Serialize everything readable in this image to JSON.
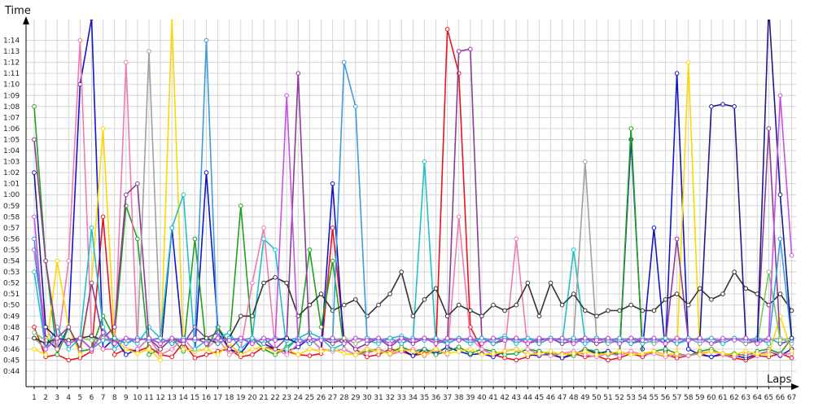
{
  "chart_data": {
    "type": "line",
    "title": "",
    "xlabel": "Laps",
    "ylabel": "Time",
    "grid": true,
    "legend": "none",
    "xlim": [
      1,
      67
    ],
    "ylim": [
      0.7333,
      1.2667
    ],
    "y_unit": "minutes (m:ss)",
    "x_ticks": [
      "1",
      "2",
      "3",
      "4",
      "5",
      "6",
      "7",
      "8",
      "9",
      "10",
      "11",
      "12",
      "13",
      "14",
      "15",
      "16",
      "17",
      "18",
      "19",
      "20",
      "21",
      "22",
      "23",
      "24",
      "25",
      "26",
      "27",
      "28",
      "29",
      "30",
      "31",
      "32",
      "33",
      "34",
      "35",
      "36",
      "37",
      "38",
      "39",
      "40",
      "41",
      "42",
      "43",
      "44",
      "45",
      "46",
      "47",
      "48",
      "49",
      "50",
      "51",
      "52",
      "53",
      "54",
      "55",
      "56",
      "57",
      "58",
      "59",
      "60",
      "61",
      "62",
      "63",
      "64",
      "65",
      "66",
      "67"
    ],
    "y_ticks": [
      "0:44",
      "0:45",
      "0:46",
      "0:47",
      "0:48",
      "0:49",
      "0:50",
      "0:51",
      "0:52",
      "0:53",
      "0:54",
      "0:55",
      "0:56",
      "0:57",
      "0:58",
      "0:59",
      "1:00",
      "1:01",
      "1:02",
      "1:03",
      "1:04",
      "1:05",
      "1:06",
      "1:07",
      "1:08",
      "1:09",
      "1:10",
      "1:11",
      "1:12",
      "1:13",
      "1:14"
    ],
    "series": [
      {
        "color": "#e8141e",
        "values": [
          48,
          45.3,
          45.5,
          45,
          45.2,
          45.8,
          58,
          45.5,
          46,
          45.8,
          46.2,
          45.5,
          45.3,
          46.6,
          45.2,
          45.5,
          45.8,
          46,
          45.3,
          45.5,
          46.2,
          46,
          45.8,
          45.5,
          45.4,
          45.6,
          57,
          47,
          46,
          45.3,
          45.5,
          46,
          45.8,
          45.4,
          45.6,
          46,
          75,
          71,
          48,
          46,
          45.5,
          45.2,
          45,
          45.3,
          45.8,
          45.5,
          45.2,
          45.6,
          45.3,
          45.4,
          45,
          45.2,
          45.6,
          45.3,
          45.8,
          45.5,
          45.2,
          45.4,
          45.6,
          45.3,
          45.5,
          45.2,
          45,
          45.4,
          45.3,
          45.6,
          45.2
        ]
      },
      {
        "color": "#1414c8",
        "values": [
          55,
          47,
          46,
          48,
          70,
          76,
          46,
          47,
          45.5,
          46,
          47,
          45.5,
          57,
          46,
          45.8,
          62,
          48,
          46,
          45.6,
          47,
          46.5,
          46,
          45.8,
          46.2,
          47,
          46,
          61,
          46,
          45.5,
          46,
          45.8,
          45.6,
          46,
          45.4,
          46,
          45.6,
          46.2,
          45.8,
          45.5,
          45.6,
          45.3,
          45.8,
          46,
          45.5,
          45.4,
          45.6,
          45.2,
          45.5,
          46,
          45.6,
          45.8,
          45.5,
          65,
          46,
          57,
          45.8,
          71,
          46,
          45.5,
          45.3,
          45.6,
          45.4,
          45.2,
          45.5,
          45.8,
          45.4,
          46
        ]
      },
      {
        "color": "#22a022",
        "values": [
          68,
          54,
          45.5,
          48,
          45.8,
          46,
          49,
          47,
          59,
          56,
          45.5,
          46,
          47,
          45.8,
          56,
          46,
          48,
          46.5,
          59,
          47,
          46,
          45.5,
          46.2,
          47,
          55,
          48,
          54,
          46,
          45.5,
          45.8,
          46,
          45.6,
          46.2,
          45.8,
          46,
          45.5,
          45.8,
          46.2,
          45.6,
          46,
          45.8,
          45.5,
          45.6,
          46,
          45.8,
          45.5,
          45.6,
          45.4,
          46,
          45.8,
          45.5,
          45.6,
          66,
          45.5,
          45.8,
          46,
          45.6,
          45.4,
          45.8,
          46,
          45.5,
          45.6,
          45.4,
          45.8,
          46,
          45.6,
          47
        ]
      },
      {
        "color": "#f07ab4",
        "values": [
          55,
          48,
          46,
          54,
          74,
          47,
          46,
          46,
          72,
          46,
          47,
          45.5,
          46,
          47,
          45.8,
          46,
          47,
          45.5,
          46,
          52,
          57,
          46,
          45.5,
          46.5,
          47,
          46,
          45.8,
          46,
          45.5,
          45.6,
          46,
          45.5,
          45.8,
          46,
          45.4,
          46,
          45.5,
          58,
          47,
          46,
          45.5,
          45.8,
          56,
          46,
          45.5,
          45.4,
          45.6,
          45.8,
          45.5,
          45.3,
          45.6,
          45.4,
          45.8,
          45.5,
          45.6,
          45.3,
          45.5,
          45.4,
          45.6,
          45.8,
          45.5,
          45.3,
          45.6,
          45.4,
          45.8,
          45.5,
          45.6
        ]
      },
      {
        "color": "#ffd700",
        "values": [
          46,
          45.5,
          54,
          48,
          45.5,
          52,
          66,
          47,
          46,
          45.6,
          46,
          45,
          76,
          46,
          45.8,
          46,
          45.5,
          46.5,
          45.5,
          46,
          46.2,
          45.8,
          46,
          45.5,
          46,
          45.8,
          46,
          45.6,
          45.5,
          46,
          45.8,
          45.6,
          46,
          45.8,
          45.5,
          46,
          45.6,
          45.8,
          46,
          45.5,
          45.6,
          45.8,
          46,
          45.5,
          45.6,
          45.8,
          45.5,
          45.6,
          45.8,
          45.5,
          45.6,
          45.8,
          45.5,
          45.6,
          45.8,
          45.5,
          45.6,
          72,
          45.5,
          45.8,
          45.6,
          45.5,
          45.8,
          45.6,
          45.5,
          49,
          45.8
        ]
      },
      {
        "color": "#20c0c8",
        "values": [
          53,
          46,
          48,
          46,
          47,
          57,
          48,
          46,
          47,
          46.5,
          48,
          47,
          57,
          60,
          46,
          46.8,
          47,
          47.5,
          46,
          47,
          56,
          55,
          46,
          47,
          47.5,
          47,
          46,
          46.5,
          47,
          46.8,
          46.5,
          47,
          47.2,
          46.8,
          63,
          46.5,
          46.8,
          47,
          46.5,
          47,
          46.8,
          47.2,
          46.5,
          47,
          46.8,
          47,
          46.5,
          55,
          46.8,
          47,
          46.5,
          46.8,
          47,
          46.5,
          46.8,
          47,
          46.5,
          46.8,
          47,
          46.5,
          46.8,
          47,
          46.5,
          46.8,
          47,
          46.5,
          46.8
        ]
      },
      {
        "color": "#8c3c96",
        "values": [
          65,
          54,
          47,
          48,
          46,
          52,
          47,
          48,
          60,
          61,
          47,
          46,
          47,
          46.5,
          48,
          47,
          47.5,
          46,
          47,
          46.5,
          47,
          46,
          47,
          71,
          46.5,
          47,
          46.5,
          47,
          46,
          46.5,
          47,
          46.2,
          47,
          46.5,
          47,
          46.8,
          46.5,
          73,
          73.2,
          47,
          46.5,
          46.8,
          47,
          46.5,
          46.8,
          47,
          46.5,
          46.8,
          47,
          46.5,
          46.8,
          47,
          46.5,
          46.8,
          47,
          46.5,
          56,
          46.8,
          47,
          46.5,
          46.8,
          47,
          46.5,
          46.8,
          66,
          46.5,
          46.8
        ]
      },
      {
        "color": "#a0a0a0",
        "values": [
          47,
          46,
          47,
          46.5,
          47,
          46,
          47.5,
          46.5,
          47,
          46.8,
          73,
          47,
          46.5,
          47,
          46.8,
          47,
          46.5,
          47,
          46.8,
          47,
          46.5,
          47,
          46.8,
          47,
          46.5,
          47,
          46.8,
          47,
          46.5,
          47,
          46.8,
          47,
          46.5,
          47,
          46.8,
          47,
          46.5,
          47,
          46.8,
          47,
          46.5,
          47,
          46.8,
          47,
          46.5,
          47,
          46.8,
          47,
          63,
          47,
          46.5,
          47,
          46.8,
          47,
          46.5,
          47,
          46.8,
          47,
          46.5,
          47,
          46.8,
          47,
          46.5,
          47,
          46.8,
          47,
          46.5
        ]
      },
      {
        "color": "#333333",
        "values": [
          47,
          46.5,
          47,
          46.8,
          47,
          47.2,
          46.8,
          47,
          46.5,
          47,
          46.8,
          47,
          46.5,
          47,
          46.8,
          47,
          46.5,
          47,
          49,
          49,
          52,
          52.5,
          52,
          49,
          50,
          51,
          49.5,
          50,
          50.5,
          49,
          50,
          51,
          53,
          49,
          50.5,
          51.5,
          49,
          50,
          49.5,
          49,
          50,
          49.5,
          50,
          52,
          49,
          52,
          50,
          51,
          49.5,
          49,
          49.5,
          49.5,
          50,
          49.5,
          49.5,
          50.5,
          51,
          50,
          51.5,
          50.5,
          51,
          53,
          51.5,
          51,
          50,
          51,
          49.5
        ]
      },
      {
        "color": "#78c864",
        "values": [
          47.5,
          46.8,
          47,
          46.5,
          47,
          46.8,
          47,
          46.5,
          47,
          46.8,
          47,
          46.5,
          47,
          46.8,
          47,
          46.5,
          47,
          46.8,
          47,
          46.5,
          47,
          46.8,
          47,
          46.5,
          47,
          46.8,
          47,
          46.5,
          47,
          46.8,
          47,
          46.5,
          47,
          46.8,
          47,
          46.5,
          47,
          46.8,
          47,
          46.5,
          47,
          46.8,
          47,
          46.5,
          47,
          46.8,
          47,
          46.5,
          47,
          46.8,
          47,
          46.5,
          47,
          46.8,
          47,
          46.5,
          47,
          46.8,
          47,
          46.5,
          47,
          46.8,
          47,
          46.5,
          53,
          46.8,
          47
        ]
      },
      {
        "color": "#3c9cdc",
        "values": [
          56,
          46,
          47,
          46.5,
          47,
          46,
          46.8,
          47,
          46.5,
          47,
          46.8,
          47,
          46.5,
          47,
          46.8,
          74,
          46.5,
          47,
          46.8,
          47,
          46.5,
          47,
          46.8,
          47,
          46.5,
          47,
          46.8,
          72,
          68,
          47,
          46.8,
          47,
          46.5,
          47,
          46.8,
          47,
          46.5,
          47,
          46.8,
          47,
          46.5,
          47,
          46.8,
          47,
          46.5,
          47,
          46.8,
          47,
          46.5,
          47,
          46.8,
          47,
          46.5,
          47,
          46.8,
          47,
          46.5,
          47,
          46.8,
          47,
          46.5,
          47,
          46.8,
          47,
          46.5,
          56,
          46.8
        ]
      },
      {
        "color": "#1c1c8c",
        "values": [
          62,
          48,
          47,
          46.5,
          47,
          46,
          47.5,
          46.5,
          47,
          46.8,
          47,
          46.5,
          47,
          46.8,
          47,
          46.5,
          47,
          46.8,
          47,
          46.5,
          47,
          46.8,
          47,
          46.5,
          47,
          46.8,
          47,
          46.5,
          47,
          46.8,
          47,
          46.5,
          47,
          46.8,
          47,
          46.5,
          47,
          46.8,
          47,
          46.5,
          47,
          46.8,
          47,
          46.5,
          47,
          46.8,
          47,
          46.5,
          47,
          46.8,
          47,
          46.5,
          47,
          46.8,
          47,
          46.5,
          47,
          46.8,
          47,
          68,
          68.2,
          68,
          47,
          46.5,
          77,
          60,
          47
        ]
      },
      {
        "color": "#c850e6",
        "values": [
          58,
          46,
          47,
          46.5,
          47,
          46,
          47.5,
          46.5,
          47,
          46.8,
          47,
          46.5,
          47,
          46.8,
          47,
          46.5,
          47,
          46.8,
          47,
          46.5,
          47,
          46.8,
          69,
          46.5,
          47,
          46.8,
          47,
          46.5,
          47,
          46.8,
          47,
          46.5,
          47,
          46.8,
          47,
          46.5,
          47,
          46.8,
          47,
          46.5,
          47,
          46.8,
          47,
          46.5,
          47,
          46.8,
          47,
          46.5,
          47,
          46.8,
          47,
          46.5,
          47,
          46.8,
          47,
          46.5,
          47,
          46.8,
          47,
          46.5,
          47,
          46.8,
          47,
          46.5,
          47,
          69,
          54.5
        ]
      }
    ]
  }
}
